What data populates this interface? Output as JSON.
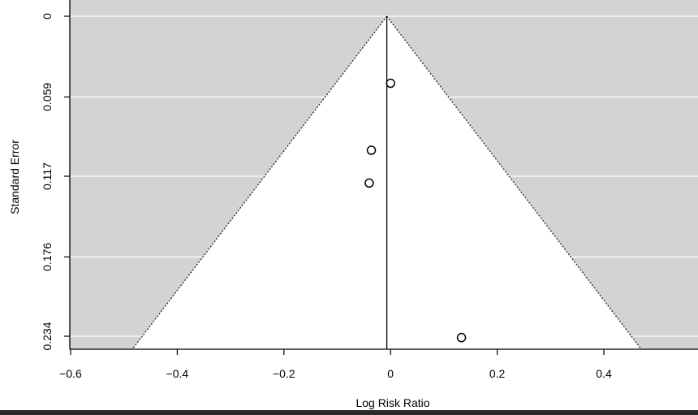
{
  "chart_data": {
    "type": "scatter",
    "title": "",
    "xlabel": "Log Risk Ratio",
    "ylabel": "Standard Error",
    "xlim": [
      -0.6,
      0.57
    ],
    "ylim": [
      0,
      0.244
    ],
    "y_reversed": true,
    "x_ticks": [
      -0.6,
      -0.4,
      -0.2,
      0,
      0.2,
      0.4
    ],
    "x_tick_labels": [
      "−0.6",
      "−0.4",
      "−0.2",
      "0",
      "0.2",
      "0.4"
    ],
    "y_ticks": [
      0,
      0.059,
      0.117,
      0.176,
      0.234
    ],
    "y_tick_labels": [
      "0",
      "0.059",
      "0.117",
      "0.176",
      "0.234"
    ],
    "reference_line_x": -0.007,
    "funnel": {
      "apex_x": -0.007,
      "apex_se": 0,
      "se_max": 0.244,
      "z": 1.96
    },
    "background_color": "#d3d3d3",
    "funnel_color": "#ffffff",
    "points": [
      {
        "x": 0.0,
        "y": 0.049
      },
      {
        "x": -0.036,
        "y": 0.098
      },
      {
        "x": -0.04,
        "y": 0.122
      },
      {
        "x": 0.133,
        "y": 0.235
      }
    ]
  }
}
